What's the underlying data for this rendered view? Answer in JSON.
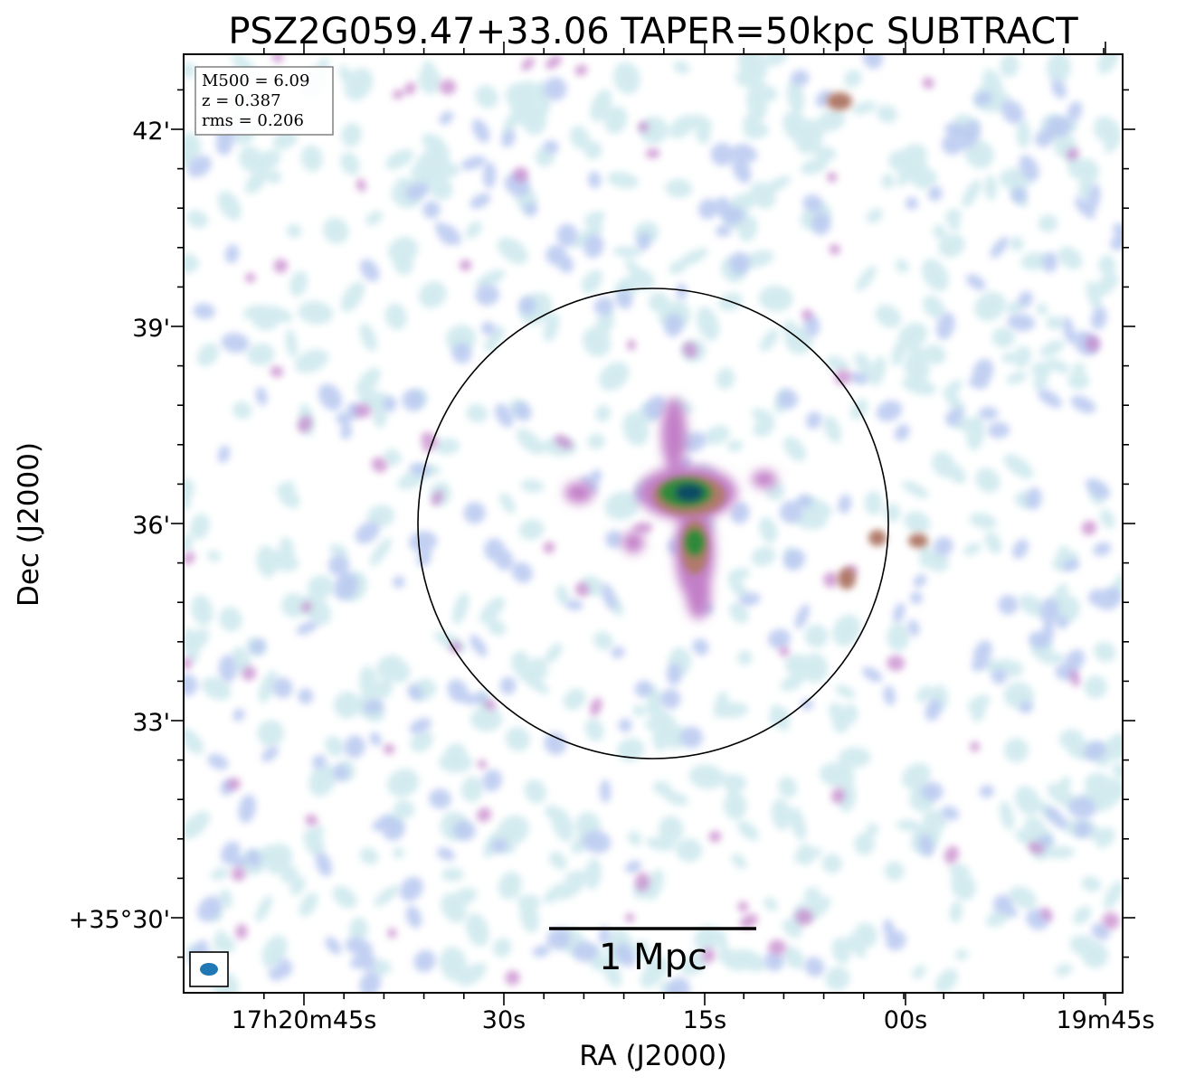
{
  "figure": {
    "title": "PSZ2G059.47+33.06 TAPER=50kpc SUBTRACT",
    "xlabel": "RA (J2000)",
    "ylabel": "Dec (J2000)",
    "x_ticks": [
      "17h20m45s",
      "30s",
      "15s",
      "00s",
      "19m45s"
    ],
    "y_ticks": [
      "42'",
      "39'",
      "36'",
      "33'",
      "+35°30'"
    ],
    "info": {
      "mass": "M500 = 6.09",
      "redshift": "z = 0.387",
      "rms": "rms = 0.206"
    },
    "scalebar_label": "1 Mpc",
    "colors": {
      "faint": "#cfe9ee",
      "low": "#b8c8f0",
      "mid": "#c27fc8",
      "high": "#b07a6a",
      "peak": "#2f8a3a",
      "core": "#0e4b63",
      "beam": "#1f77b4"
    }
  }
}
